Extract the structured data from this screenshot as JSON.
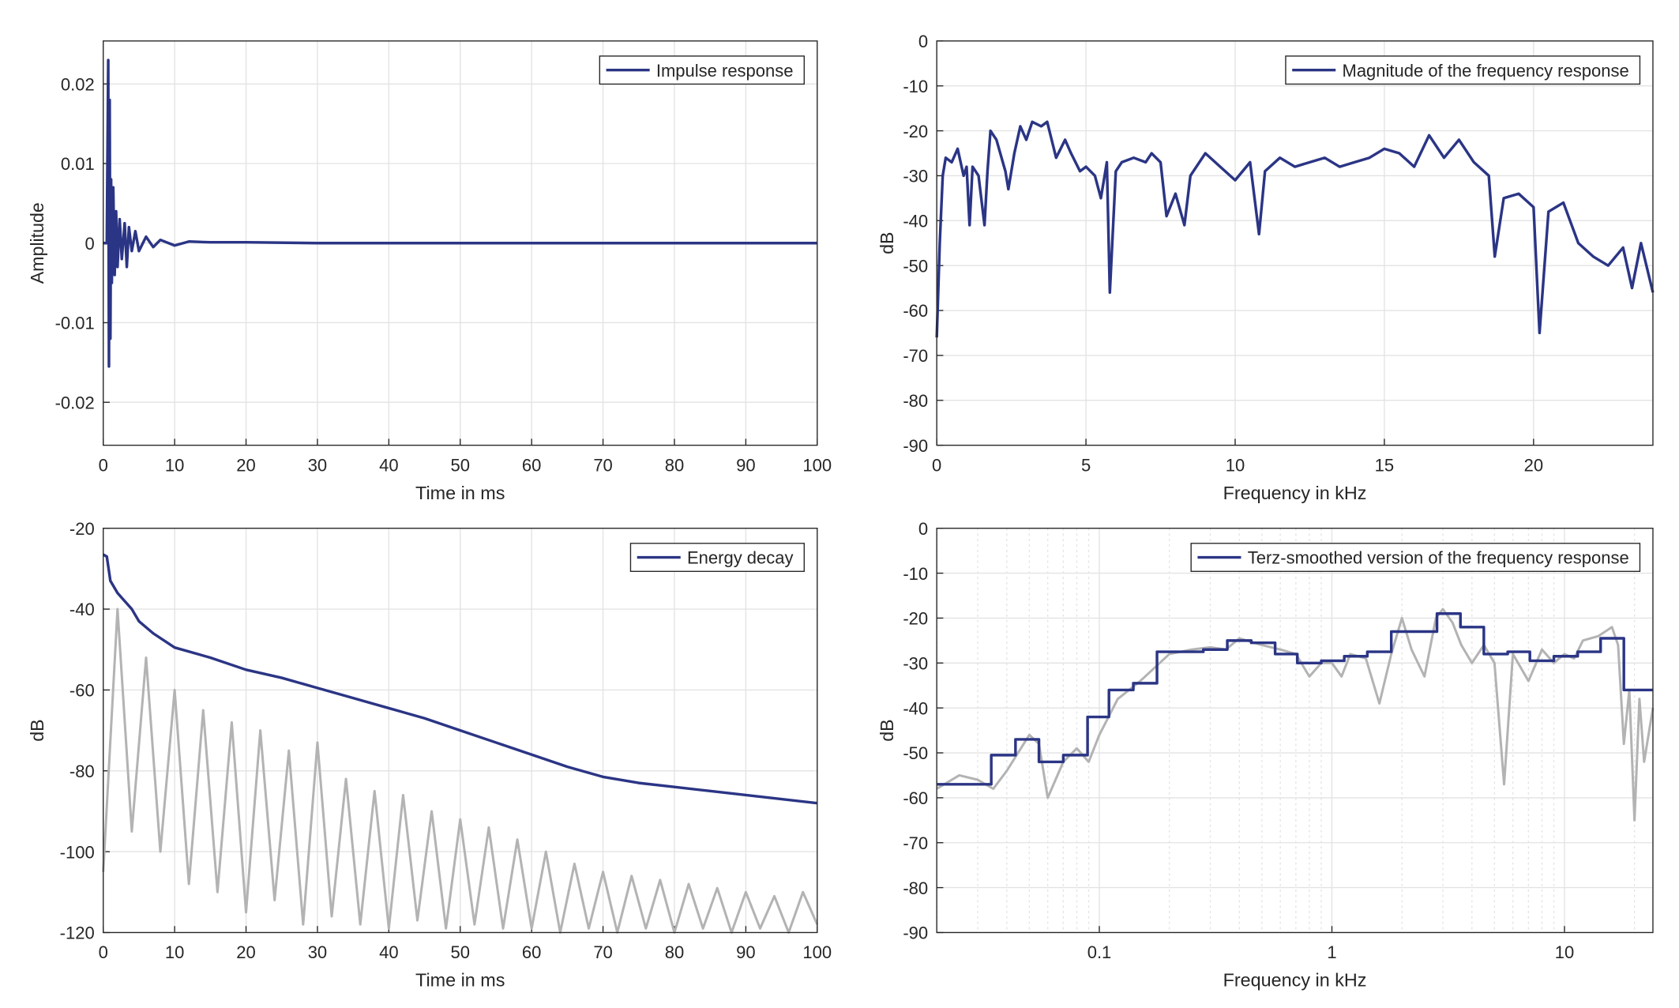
{
  "chart_data": [
    {
      "type": "line",
      "xlabel": "Time in ms",
      "ylabel": "Amplitude",
      "legend": "northeast",
      "grid": true,
      "xlim": [
        0,
        100
      ],
      "xticks": [
        0,
        10,
        20,
        30,
        40,
        50,
        60,
        70,
        80,
        90,
        100
      ],
      "ylim": [
        -0.0254,
        0.0254
      ],
      "yticks": [
        -0.02,
        -0.01,
        0,
        0.01,
        0.02
      ],
      "x": [
        0,
        0.5,
        0.7,
        0.8,
        0.9,
        1.0,
        1.1,
        1.2,
        1.4,
        1.6,
        1.8,
        2,
        2.3,
        2.6,
        3,
        3.3,
        3.6,
        4,
        4.5,
        5,
        6,
        7,
        8,
        10,
        12,
        15,
        20,
        30,
        40,
        50,
        60,
        70,
        80,
        90,
        100
      ],
      "series": [
        {
          "name": "Impulse response",
          "color": "#2b3585",
          "values": [
            0,
            0,
            0.023,
            -0.0155,
            0.018,
            -0.012,
            0.008,
            -0.005,
            0.007,
            -0.004,
            0.004,
            -0.003,
            0.003,
            -0.002,
            0.0025,
            -0.003,
            0.002,
            -0.001,
            0.0015,
            -0.001,
            0.0008,
            -0.0005,
            0.0004,
            -0.0003,
            0.0002,
            0.0001,
            0.0001,
            0,
            0,
            0,
            0,
            0,
            0,
            0,
            0
          ]
        }
      ]
    },
    {
      "type": "line",
      "xlabel": "Frequency in kHz",
      "ylabel": "dB",
      "legend": "northeast",
      "grid": true,
      "xlim": [
        0,
        24
      ],
      "xticks": [
        0,
        5,
        10,
        15,
        20
      ],
      "ylim": [
        -90,
        0
      ],
      "yticks": [
        -90,
        -80,
        -70,
        -60,
        -50,
        -40,
        -30,
        -20,
        -10,
        0
      ],
      "x": [
        0,
        0.1,
        0.2,
        0.3,
        0.5,
        0.7,
        0.9,
        1.0,
        1.1,
        1.2,
        1.4,
        1.6,
        1.7,
        1.8,
        2.0,
        2.3,
        2.4,
        2.6,
        2.8,
        3.0,
        3.2,
        3.5,
        3.7,
        4.0,
        4.3,
        4.5,
        4.8,
        5.0,
        5.3,
        5.5,
        5.7,
        5.8,
        6.0,
        6.2,
        6.6,
        7.0,
        7.2,
        7.5,
        7.7,
        8.0,
        8.3,
        8.5,
        9.0,
        9.5,
        10.0,
        10.5,
        10.8,
        11.0,
        11.5,
        12,
        12.5,
        13,
        13.5,
        14,
        14.5,
        15,
        15.5,
        16,
        16.5,
        17,
        17.5,
        18,
        18.5,
        18.7,
        19,
        19.5,
        20,
        20.2,
        20.5,
        21,
        21.5,
        22,
        22.5,
        23,
        23.3,
        23.6,
        24
      ],
      "series": [
        {
          "name": "Magnitude of the frequency response",
          "color": "#2b3585",
          "values": [
            -66,
            -45,
            -30,
            -26,
            -27,
            -24,
            -30,
            -28,
            -41,
            -28,
            -30,
            -41,
            -29,
            -20,
            -22,
            -29,
            -33,
            -25,
            -19,
            -22,
            -18,
            -19,
            -18,
            -26,
            -22,
            -25,
            -29,
            -28,
            -30,
            -35,
            -27,
            -56,
            -29,
            -27,
            -26,
            -27,
            -25,
            -27,
            -39,
            -34,
            -41,
            -30,
            -25,
            -28,
            -31,
            -27,
            -43,
            -29,
            -26,
            -28,
            -27,
            -26,
            -28,
            -27,
            -26,
            -24,
            -25,
            -28,
            -21,
            -26,
            -22,
            -27,
            -30,
            -48,
            -35,
            -34,
            -37,
            -65,
            -38,
            -36,
            -45,
            -48,
            -50,
            -46,
            -55,
            -45,
            -56
          ]
        }
      ]
    },
    {
      "type": "line",
      "xlabel": "Time in ms",
      "ylabel": "dB",
      "legend": "northeast",
      "grid": true,
      "xlim": [
        0,
        100
      ],
      "xticks": [
        0,
        10,
        20,
        30,
        40,
        50,
        60,
        70,
        80,
        90,
        100
      ],
      "ylim": [
        -120,
        -20
      ],
      "yticks": [
        -120,
        -100,
        -80,
        -60,
        -40,
        -20
      ],
      "series": [
        {
          "color": "#b3b3b3",
          "x": [
            0,
            2,
            4,
            6,
            8,
            10,
            12,
            14,
            16,
            18,
            20,
            22,
            24,
            26,
            28,
            30,
            32,
            34,
            36,
            38,
            40,
            42,
            44,
            46,
            48,
            50,
            52,
            54,
            56,
            58,
            60,
            62,
            64,
            66,
            68,
            70,
            72,
            74,
            76,
            78,
            80,
            82,
            84,
            86,
            88,
            90,
            92,
            94,
            96,
            98,
            100
          ],
          "values": [
            -105,
            -40,
            -95,
            -52,
            -100,
            -60,
            -108,
            -65,
            -110,
            -68,
            -115,
            -70,
            -112,
            -75,
            -118,
            -73,
            -116,
            -82,
            -118,
            -85,
            -119,
            -86,
            -117,
            -90,
            -119,
            -92,
            -118,
            -94,
            -119,
            -97,
            -119,
            -100,
            -120,
            -103,
            -119,
            -105,
            -120,
            -106,
            -119,
            -107,
            -120,
            -108,
            -119,
            -109,
            -120,
            -110,
            -119,
            -111,
            -120,
            -110,
            -118
          ]
        },
        {
          "name": "Energy decay",
          "color": "#2b3585",
          "x": [
            0,
            0.5,
            1,
            2,
            3,
            4,
            5,
            7,
            10,
            15,
            20,
            25,
            30,
            35,
            40,
            45,
            50,
            55,
            60,
            65,
            70,
            75,
            80,
            85,
            90,
            95,
            100
          ],
          "values": [
            -26.5,
            -27,
            -33,
            -36,
            -38,
            -40,
            -43,
            -46,
            -49.5,
            -52,
            -55,
            -57,
            -59.5,
            -62,
            -64.5,
            -67,
            -70,
            -73,
            -76,
            -79,
            -81.5,
            -83,
            -84,
            -85,
            -86,
            -87,
            -88
          ]
        }
      ]
    },
    {
      "type": "line",
      "xlabel": "Frequency in kHz",
      "ylabel": "dB",
      "legend": "northeast",
      "grid": true,
      "xscale": "log",
      "xlim": [
        0.02,
        24
      ],
      "xticks": [
        0.1,
        1,
        10
      ],
      "xminorticks": [
        0.02,
        0.03,
        0.04,
        0.05,
        0.06,
        0.07,
        0.08,
        0.09,
        0.2,
        0.3,
        0.4,
        0.5,
        0.6,
        0.7,
        0.8,
        0.9,
        2,
        3,
        4,
        5,
        6,
        7,
        8,
        9,
        20
      ],
      "ylim": [
        -90,
        0
      ],
      "yticks": [
        -90,
        -80,
        -70,
        -60,
        -50,
        -40,
        -30,
        -20,
        -10,
        0
      ],
      "series": [
        {
          "color": "#b3b3b3",
          "x": [
            0.02,
            0.025,
            0.03,
            0.035,
            0.04,
            0.05,
            0.055,
            0.06,
            0.07,
            0.08,
            0.09,
            0.1,
            0.12,
            0.15,
            0.2,
            0.25,
            0.3,
            0.35,
            0.4,
            0.5,
            0.6,
            0.7,
            0.8,
            0.9,
            1.0,
            1.1,
            1.2,
            1.4,
            1.6,
            1.8,
            2.0,
            2.2,
            2.5,
            2.8,
            3.0,
            3.3,
            3.6,
            4.0,
            4.5,
            5.0,
            5.5,
            6.0,
            7.0,
            8,
            9,
            10,
            11,
            12,
            14,
            16,
            17,
            18,
            19,
            20,
            21,
            22,
            24
          ],
          "values": [
            -58,
            -55,
            -56,
            -58,
            -54,
            -46,
            -48,
            -60,
            -52,
            -49,
            -52,
            -46,
            -38,
            -34,
            -28,
            -27,
            -26.5,
            -27,
            -24.5,
            -26,
            -27,
            -28,
            -33,
            -30,
            -30,
            -33,
            -28,
            -29,
            -39,
            -28,
            -20,
            -27,
            -33,
            -20,
            -18,
            -21,
            -26,
            -30,
            -26,
            -30,
            -57,
            -28,
            -34,
            -27,
            -30,
            -28,
            -29,
            -25,
            -24,
            -22,
            -26,
            -48,
            -36,
            -65,
            -38,
            -52,
            -40
          ]
        },
        {
          "name": "Terz-smoothed version of the frequency response",
          "color": "#2b3585",
          "x": [
            0.02,
            0.0343,
            0.0343,
            0.0436,
            0.0436,
            0.055,
            0.055,
            0.07,
            0.07,
            0.089,
            0.089,
            0.11,
            0.11,
            0.14,
            0.14,
            0.177,
            0.177,
            0.28,
            0.28,
            0.355,
            0.355,
            0.45,
            0.45,
            0.57,
            0.57,
            0.71,
            0.71,
            0.9,
            0.9,
            1.13,
            1.13,
            1.42,
            1.42,
            1.8,
            1.8,
            2.25,
            2.25,
            2.83,
            2.83,
            3.57,
            3.57,
            4.5,
            4.5,
            5.7,
            5.7,
            7.1,
            7.1,
            9,
            9,
            11.4,
            11.4,
            14.3,
            14.3,
            18,
            18,
            24
          ],
          "values": [
            -57,
            -57,
            -50.5,
            -50.5,
            -47,
            -47,
            -52,
            -52,
            -50.5,
            -50.5,
            -42,
            -42,
            -36,
            -36,
            -34.5,
            -34.5,
            -27.5,
            -27.5,
            -27,
            -27,
            -25,
            -25,
            -25.5,
            -25.5,
            -28,
            -28,
            -30,
            -30,
            -29.5,
            -29.5,
            -28.5,
            -28.5,
            -27.5,
            -27.5,
            -23,
            -23,
            -23,
            -23,
            -19,
            -19,
            -22,
            -22,
            -28,
            -28,
            -27.5,
            -27.5,
            -29.5,
            -29.5,
            -28.5,
            -28.5,
            -27.5,
            -27.5,
            -24.5,
            -24.5,
            -36,
            -36
          ]
        }
      ]
    }
  ]
}
